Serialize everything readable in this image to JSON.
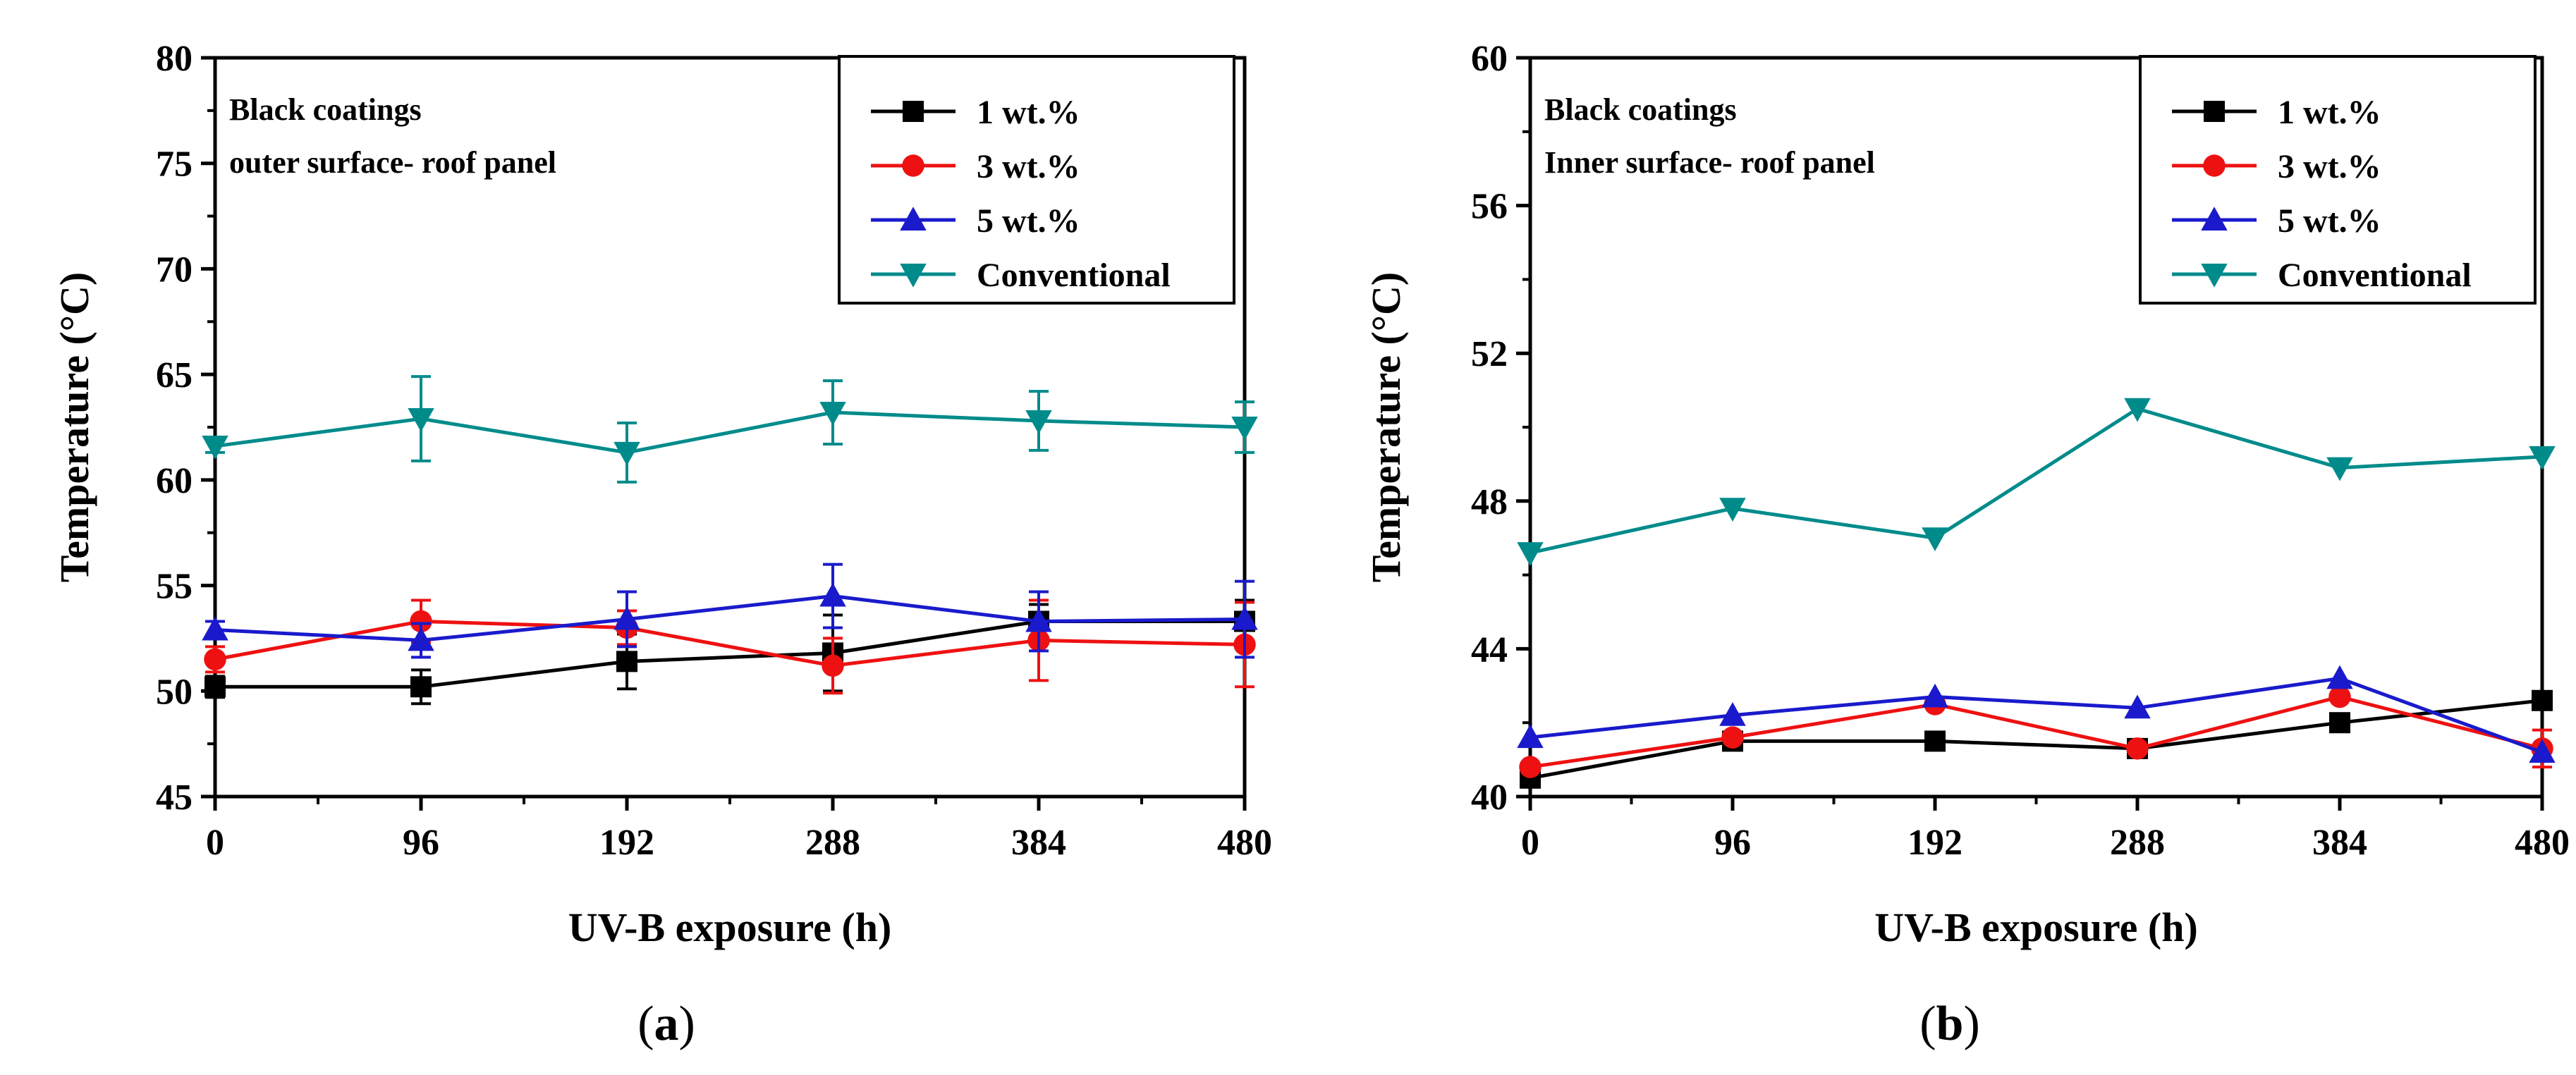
{
  "chart_data": [
    {
      "type": "line",
      "panel_caption": {
        "open": "(",
        "letter": "a",
        "close": ")"
      },
      "annotation": [
        "Black coatings",
        "outer surface- roof panel"
      ],
      "xlabel": "UV-B exposure (h)",
      "ylabel": "Temperature (°C)",
      "x": [
        0,
        96,
        192,
        288,
        384,
        480
      ],
      "xticks": [
        "0",
        "96",
        "192",
        "288",
        "384",
        "480"
      ],
      "xlim": [
        0,
        480
      ],
      "ylim": [
        45,
        80
      ],
      "yticks": [
        "45",
        "50",
        "55",
        "60",
        "65",
        "70",
        "75",
        "80"
      ],
      "ytick_values": [
        45,
        50,
        55,
        60,
        65,
        70,
        75,
        80
      ],
      "legend_position": "top-right",
      "series": [
        {
          "name": "1 wt.%",
          "marker": "square",
          "color": "#000000",
          "values": [
            50.2,
            50.2,
            51.4,
            51.8,
            53.3,
            53.3
          ],
          "errors": [
            0.5,
            0.8,
            1.3,
            1.8,
            0.8,
            1.0
          ]
        },
        {
          "name": "3 wt.%",
          "marker": "circle",
          "color": "#ee1111",
          "values": [
            51.5,
            53.3,
            53.0,
            51.2,
            52.4,
            52.2
          ],
          "errors": [
            0.6,
            1.0,
            0.8,
            1.3,
            1.9,
            2.0
          ]
        },
        {
          "name": "5 wt.%",
          "marker": "triangle-up",
          "color": "#1a1acc",
          "values": [
            52.9,
            52.4,
            53.4,
            54.5,
            53.3,
            53.4
          ],
          "errors": [
            0.4,
            0.8,
            1.3,
            1.5,
            1.4,
            1.8
          ]
        },
        {
          "name": "Conventional",
          "marker": "triangle-down",
          "color": "#008b8b",
          "values": [
            61.6,
            62.9,
            61.3,
            63.2,
            62.8,
            62.5
          ],
          "errors": [
            0.3,
            2.0,
            1.4,
            1.5,
            1.4,
            1.2
          ]
        }
      ]
    },
    {
      "type": "line",
      "panel_caption": {
        "open": "(",
        "letter": "b",
        "close": ")"
      },
      "annotation": [
        "Black coatings",
        "Inner surface- roof panel"
      ],
      "xlabel": "UV-B exposure (h)",
      "ylabel": "Temperature (°C)",
      "x": [
        0,
        96,
        192,
        288,
        384,
        480
      ],
      "xticks": [
        "0",
        "96",
        "192",
        "288",
        "384",
        "480"
      ],
      "xlim": [
        0,
        480
      ],
      "ylim": [
        40,
        60
      ],
      "yticks": [
        "40",
        "44",
        "48",
        "52",
        "56",
        "60"
      ],
      "ytick_values": [
        40,
        44,
        48,
        52,
        56,
        60
      ],
      "legend_position": "top-right",
      "series": [
        {
          "name": "1 wt.%",
          "marker": "square",
          "color": "#000000",
          "values": [
            40.5,
            41.5,
            41.5,
            41.3,
            42.0,
            42.6
          ],
          "errors": [
            0,
            0,
            0,
            0,
            0,
            0
          ]
        },
        {
          "name": "3 wt.%",
          "marker": "circle",
          "color": "#ee1111",
          "values": [
            40.8,
            41.6,
            42.5,
            41.3,
            42.7,
            41.3
          ],
          "errors": [
            0,
            0,
            0,
            0,
            0,
            0.5
          ]
        },
        {
          "name": "5 wt.%",
          "marker": "triangle-up",
          "color": "#1a1acc",
          "values": [
            41.6,
            42.2,
            42.7,
            42.4,
            43.2,
            41.2
          ],
          "errors": [
            0,
            0,
            0,
            0,
            0,
            0
          ]
        },
        {
          "name": "Conventional",
          "marker": "triangle-down",
          "color": "#008b8b",
          "values": [
            46.6,
            47.8,
            47.0,
            50.5,
            48.9,
            49.2
          ],
          "errors": [
            0,
            0,
            0,
            0,
            0,
            0
          ]
        }
      ]
    }
  ]
}
